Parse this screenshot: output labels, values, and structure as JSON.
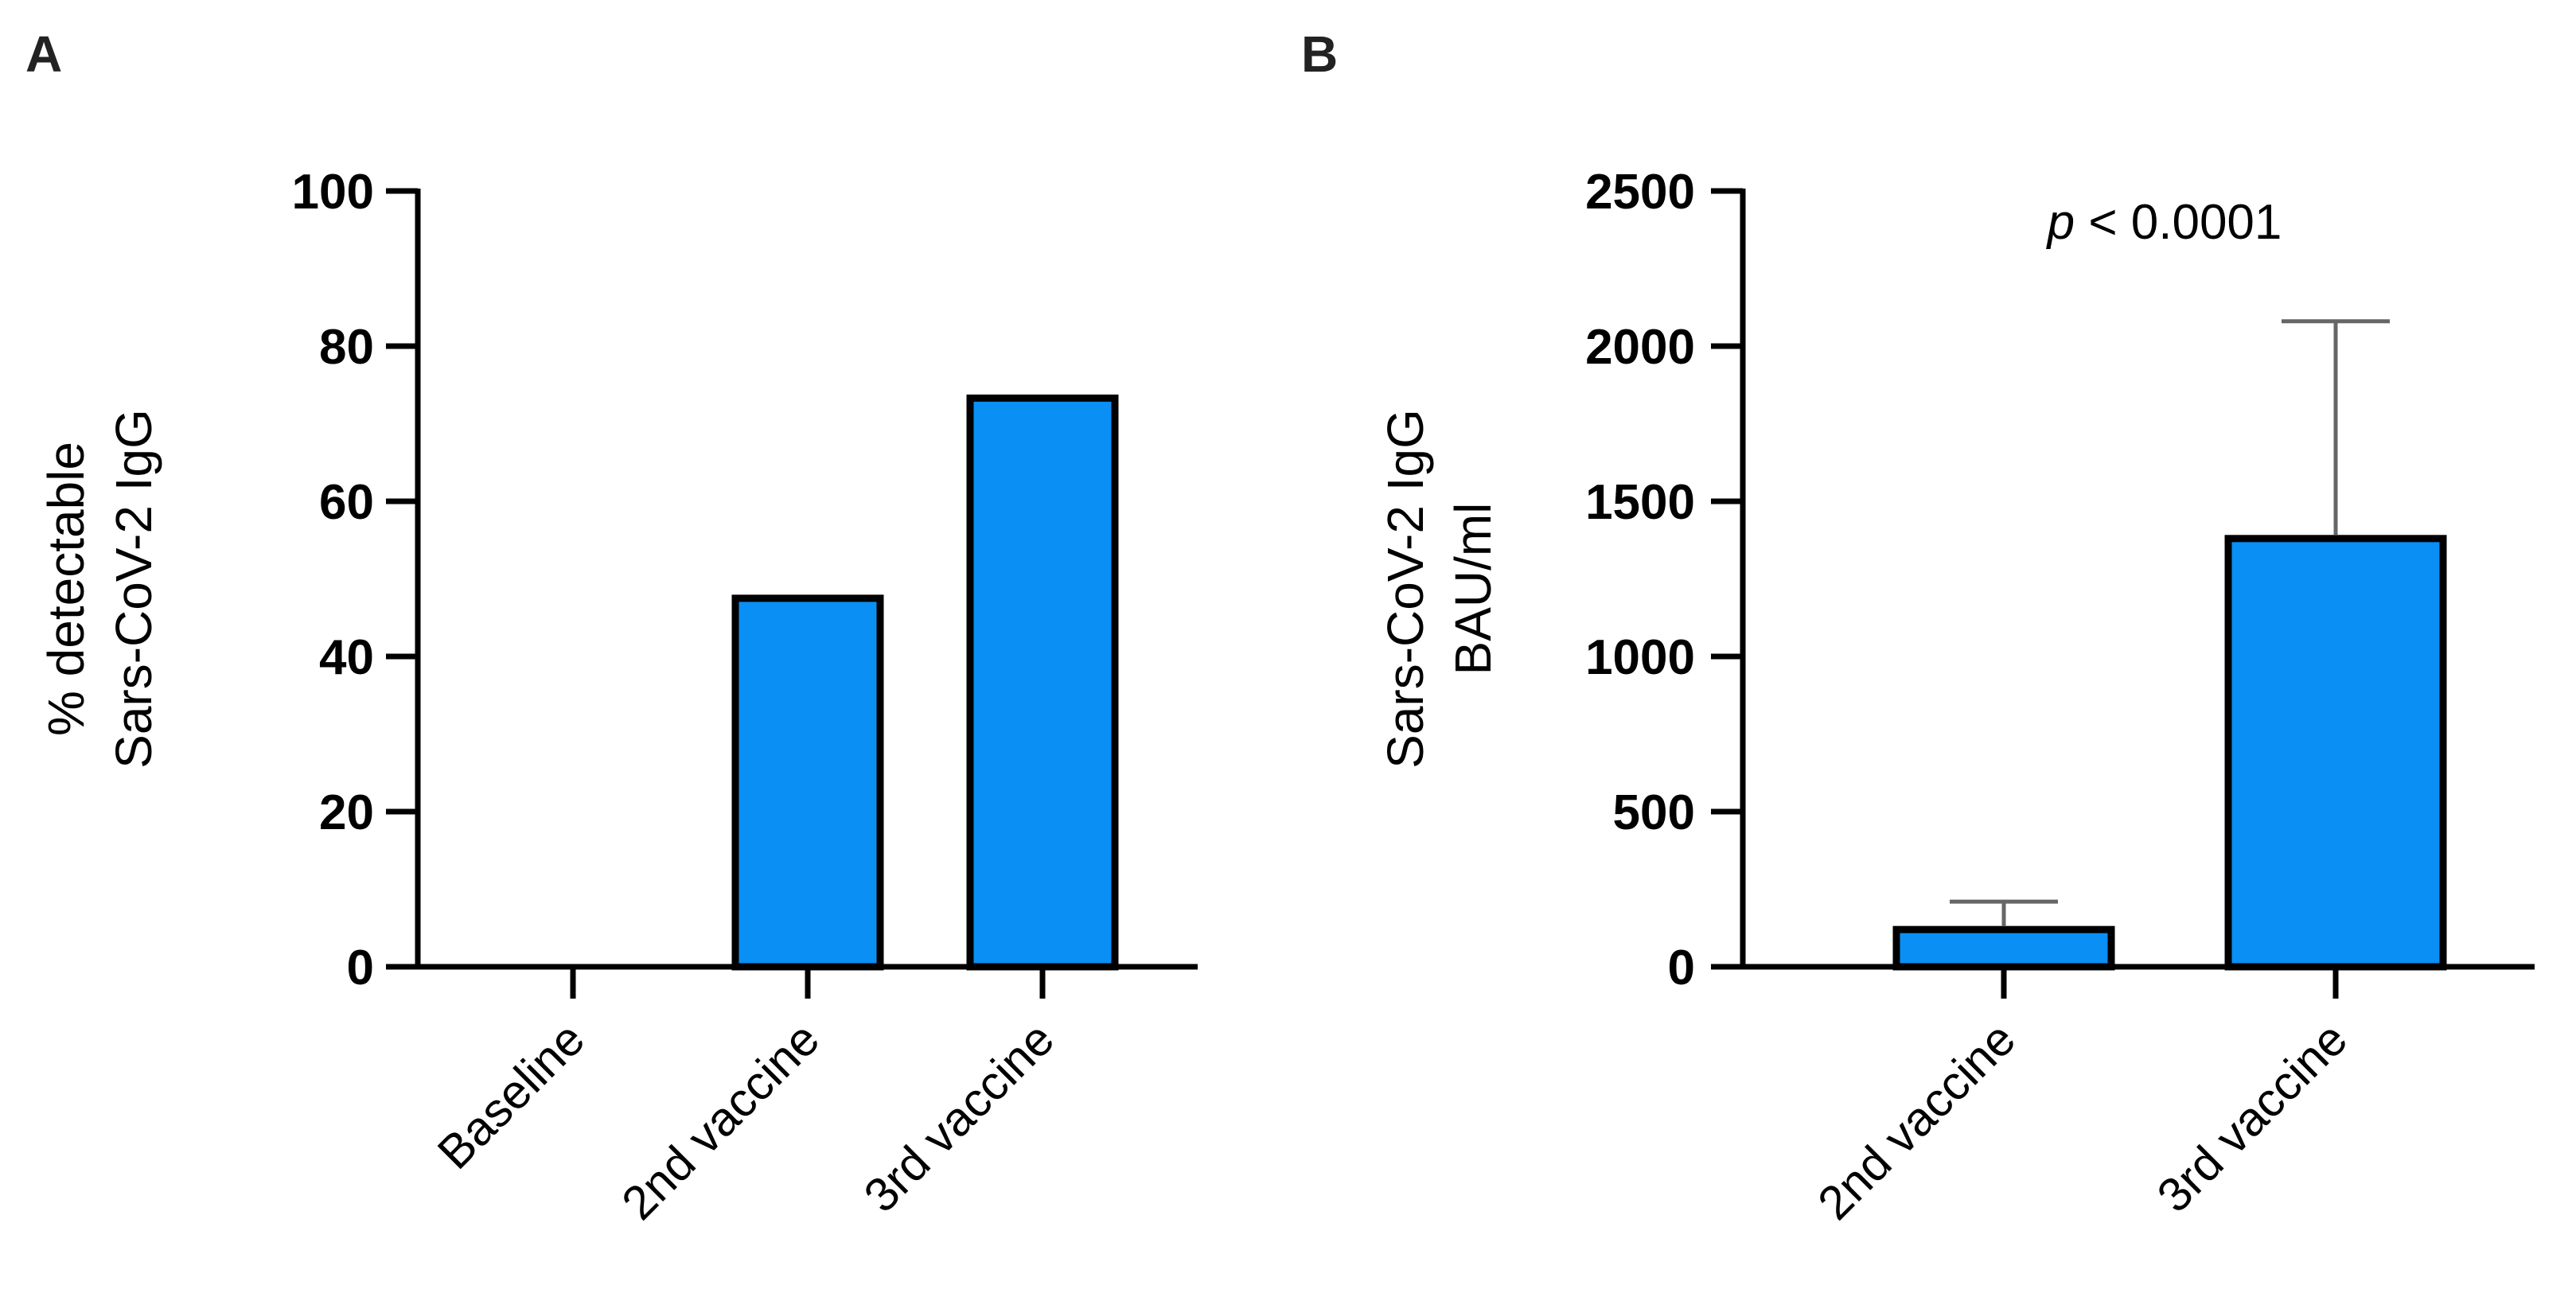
{
  "chart_data": [
    {
      "type": "bar",
      "panel": "A",
      "title": "",
      "xlabel": "",
      "ylabel_lines": [
        "% detectable",
        "Sars-CoV-2 IgG"
      ],
      "categories": [
        "Baseline",
        "2nd vaccine",
        "3rd vaccine"
      ],
      "values": [
        0,
        47.5,
        73.3
      ],
      "ylim": [
        0,
        100
      ],
      "yticks": [
        0,
        20,
        40,
        60,
        80,
        100
      ],
      "bar_color": "#0a8ff5",
      "grid": false,
      "legend": "none"
    },
    {
      "type": "bar",
      "panel": "B",
      "title": "",
      "xlabel": "",
      "ylabel_lines": [
        "Sars-CoV-2 IgG",
        "BAU/ml"
      ],
      "categories": [
        "2nd vaccine",
        "3rd vaccine"
      ],
      "values": [
        120,
        1380
      ],
      "error_upper": [
        210,
        2080
      ],
      "ylim": [
        0,
        2500
      ],
      "yticks": [
        0,
        500,
        1000,
        1500,
        2000,
        2500
      ],
      "annotation": {
        "italic": "p",
        "text": " < 0.0001"
      },
      "bar_color": "#0a8ff5",
      "grid": false,
      "legend": "none"
    }
  ]
}
